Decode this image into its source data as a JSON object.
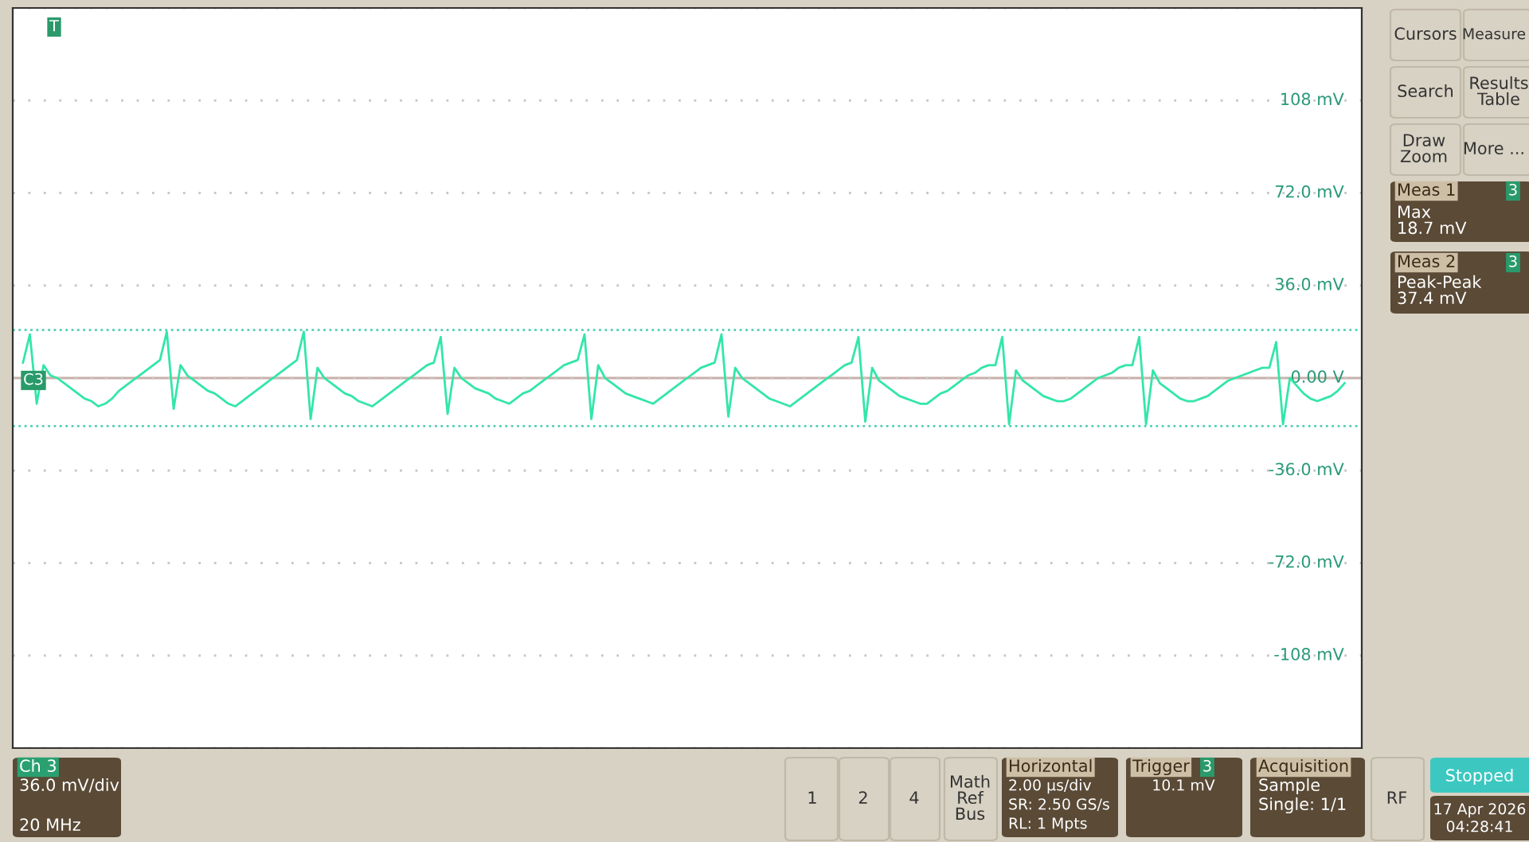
{
  "chart_data": {
    "type": "line",
    "categories": [
      null,
      null,
      null,
      null,
      null,
      null,
      null,
      null,
      null,
      null,
      null,
      null,
      null,
      null,
      null,
      null,
      null,
      null,
      null,
      null,
      null,
      null,
      null,
      null,
      null,
      null,
      null,
      null,
      null,
      null,
      null,
      null,
      null,
      null,
      null,
      null,
      null,
      null,
      null,
      null,
      null,
      null,
      null,
      null,
      null,
      null,
      null,
      null,
      null,
      null,
      null,
      null,
      null,
      null,
      null,
      null,
      null,
      null,
      null,
      null,
      null,
      null,
      null,
      null,
      null,
      null,
      null,
      null,
      null,
      null,
      null,
      null,
      null,
      null,
      null,
      null,
      null,
      null,
      null,
      null,
      null,
      null,
      null,
      null,
      null,
      null,
      null,
      null,
      null,
      null,
      null,
      null,
      null,
      null,
      null,
      null,
      null,
      null,
      null,
      null,
      null,
      null,
      null,
      null,
      null,
      null,
      null,
      null,
      null,
      null,
      null,
      null,
      null,
      null,
      null,
      null,
      null,
      null,
      null,
      null,
      null,
      null,
      null,
      null,
      null,
      null,
      null,
      null,
      null,
      null,
      null,
      null,
      null,
      null,
      null,
      null,
      null,
      null,
      null,
      null,
      null,
      null,
      null,
      null,
      null,
      null,
      null,
      null,
      null,
      null,
      null,
      null,
      null,
      null,
      null,
      null,
      null,
      null,
      null,
      null,
      null,
      null,
      null,
      null,
      null,
      null,
      null,
      null,
      null,
      null,
      null,
      null,
      null,
      null,
      null,
      null,
      null,
      null,
      null,
      null,
      null,
      null,
      null,
      null,
      null,
      null,
      null,
      null,
      null,
      null,
      null,
      null,
      null,
      null
    ],
    "series": [
      {
        "color": "#33e6a8",
        "values": [
          6,
          17,
          -10,
          5,
          1,
          0,
          -2,
          -4,
          -6,
          -8,
          -9,
          -11,
          -10,
          -8,
          -5,
          -3,
          -1,
          1,
          3,
          5,
          7,
          18,
          -12,
          5,
          1,
          -1,
          -3,
          -5,
          -6,
          -8,
          -10,
          -11,
          -9,
          -7,
          -5,
          -3,
          -1,
          1,
          3,
          5,
          7,
          18,
          -16,
          4,
          0,
          -2,
          -4,
          -6,
          -7,
          -9,
          -10,
          -11,
          -9,
          -7,
          -5,
          -3,
          -1,
          1,
          3,
          5,
          6,
          16,
          -14,
          4,
          0,
          -2,
          -4,
          -5,
          -6,
          -8,
          -9,
          -10,
          -8,
          -6,
          -5,
          -3,
          -1,
          1,
          3,
          5,
          6,
          7,
          17,
          -16,
          5,
          0,
          -2,
          -4,
          -6,
          -7,
          -8,
          -9,
          -10,
          -8,
          -6,
          -4,
          -2,
          0,
          2,
          4,
          5,
          6,
          17,
          -15,
          4,
          0,
          -2,
          -4,
          -6,
          -8,
          -9,
          -10,
          -11,
          -9,
          -7,
          -5,
          -3,
          -1,
          1,
          3,
          5,
          6,
          16,
          -17,
          4,
          -1,
          -3,
          -5,
          -7,
          -8,
          -9,
          -10,
          -10,
          -8,
          -6,
          -5,
          -3,
          -1,
          1,
          2,
          4,
          5,
          5,
          16,
          -18,
          3,
          -1,
          -3,
          -5,
          -7,
          -8,
          -9,
          -9,
          -8,
          -6,
          -4,
          -2,
          0,
          1,
          2,
          4,
          5,
          5,
          16,
          -18,
          3,
          -2,
          -4,
          -6,
          -8,
          -9,
          -9,
          -8,
          -7,
          -5,
          -3,
          -1,
          0,
          1,
          2,
          3,
          4,
          4,
          14,
          -18,
          0,
          -3,
          -6,
          -8,
          -9,
          -8,
          -7,
          -5,
          -2
        ]
      }
    ],
    "ylim": [
      -144,
      144
    ],
    "yticks": [
      {
        "value": -144,
        "label": null
      },
      {
        "value": -108,
        "label": "-108 mV"
      },
      {
        "value": -72,
        "label": "-72.0 mV"
      },
      {
        "value": -36,
        "label": "-36.0 mV"
      },
      {
        "value": 0,
        "label": "0.00 V"
      },
      {
        "value": 36,
        "label": "36.0 mV"
      },
      {
        "value": 72,
        "label": "72.0 mV"
      },
      {
        "value": 108,
        "label": "108 mV"
      },
      {
        "value": 144,
        "label": null
      }
    ],
    "tick_labels": "y",
    "grid": "y",
    "line_style": "solid",
    "ref_lines": [
      {
        "axis": "y",
        "value": 18.7,
        "color": "#4fd0b0",
        "line_style": "dotted"
      },
      {
        "axis": "y",
        "value": -18.7,
        "color": "#4fd0b0",
        "line_style": "dotted"
      }
    ],
    "annotations": [
      "Cursors",
      "Measure",
      "Search",
      "Results\nTable",
      "Draw\nZoom",
      "More ...",
      "Meas 1",
      "3",
      "Max\n18.7 mV",
      "Meas 2",
      "3",
      "Peak-Peak\n37.4 mV",
      "C3",
      "Ch 3",
      "36.0 mV/div",
      "20 MHz",
      "1",
      "2",
      "4",
      "Math\nRef\nBus",
      "Horizontal",
      "2.00 µs/div",
      "SR: 2.50 GS/s",
      "RL: 1 Mpts",
      "Trigger",
      "3",
      "10.1 mV",
      "Acquisition",
      "Sample",
      "Single: 1/1",
      "RF",
      "Stopped",
      "17 Apr 2026",
      "04:28:41",
      "T"
    ]
  }
}
